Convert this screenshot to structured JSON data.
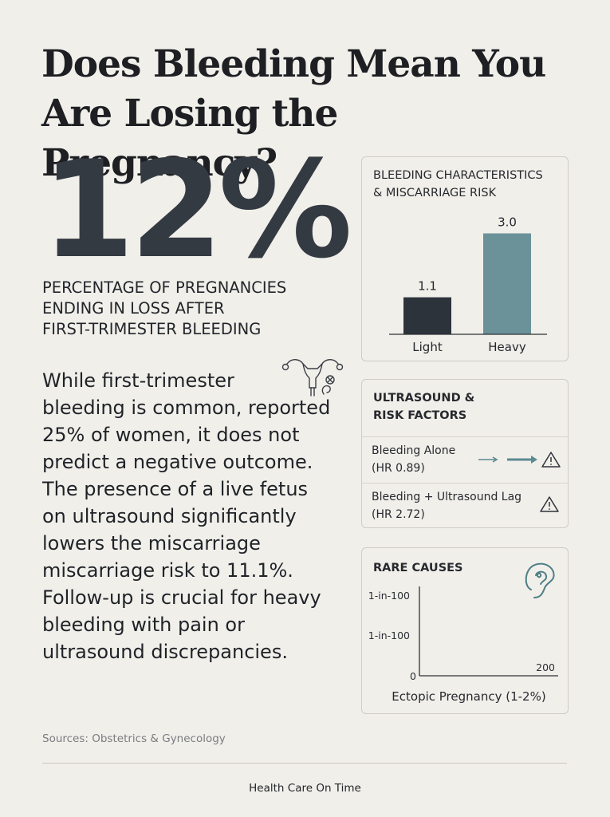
{
  "title": "Does Bleeding Mean You Are Losing the Pregnancy?",
  "headline_stat": {
    "value": "12%",
    "caption_lines": [
      "PERCENTAGE OF PREGNANCIES",
      "ENDING IN LOSS AFTER",
      "FIRST-TRIMESTER BLEEDING"
    ]
  },
  "body_lines": [
    "While first-trimester",
    "bleeding is common, reported",
    "25% of women, it does not",
    "predict a negative outcome.",
    "The presence of a live fetus",
    "on ultrasound significantly",
    "lowers the miscarriage",
    "miscarriage risk to 11.1%.",
    "Follow-up is crucial for heavy",
    "bleeding with pain or",
    "ultrasound discrepancies."
  ],
  "icons": {
    "uterus": "uterus-icon",
    "warning": "warning-icon",
    "ear": "ear-icon"
  },
  "colors": {
    "dark_bar": "#2d333b",
    "teal_bar": "#6a9298",
    "arrow": "#5b8a90"
  },
  "bleeding_card": {
    "title_lines": [
      "BLEEDING CHARACTERISTICS",
      "& MISCARRIAGE RISK"
    ]
  },
  "chart_data": [
    {
      "type": "bar",
      "title": "BLEEDING CHARACTERISTICS & MISCARRIAGE RISK",
      "categories": [
        "Light",
        "Heavy"
      ],
      "values": [
        1.1,
        3.0
      ],
      "data_labels": [
        "1.1",
        "3.0"
      ],
      "ylim": [
        0,
        3.7
      ],
      "grid": false,
      "legend": "none"
    },
    {
      "type": "line",
      "title": "RARE CAUSES",
      "xlabel": "Ectopic Pregnancy (1-2%)",
      "ytick_labels": [
        "1-in-100",
        "1-in-100",
        "0"
      ],
      "xtick_labels": [
        "200"
      ],
      "series": [],
      "grid": false,
      "legend": "none"
    }
  ],
  "ultrasound_card": {
    "title_lines": [
      "ULTRASOUND &",
      "RISK FACTORS"
    ],
    "rows": [
      {
        "label_lines": [
          "Bleeding Alone",
          "(HR 0.89)"
        ]
      },
      {
        "label_lines": [
          "Bleeding + Ultrasound Lag",
          "(HR 2.72)"
        ]
      }
    ]
  },
  "rare_card": {
    "title": "RARE CAUSES"
  },
  "sources": "Sources: Obstetrics & Gynecology",
  "footer": "Health Care On Time"
}
